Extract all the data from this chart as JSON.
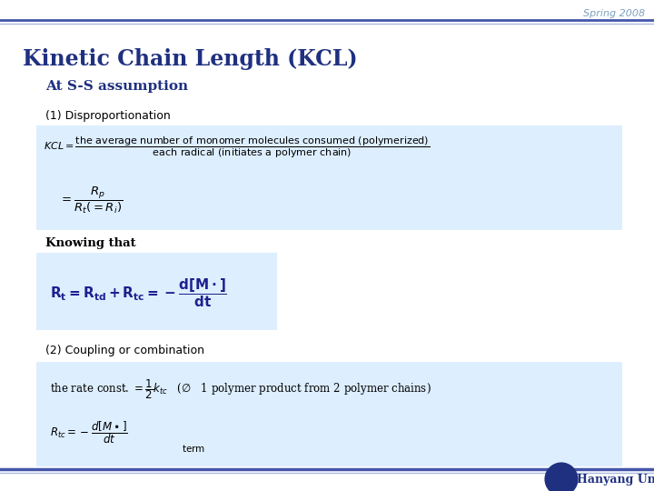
{
  "title": "Kinetic Chain Length (KCL)",
  "subtitle": "At S-S assumption",
  "spring_text": "Spring 2008",
  "section1": "(1) Disproportionation",
  "section2": "(2) Coupling or combination",
  "knowing_that": "Knowing that",
  "hanyang": "Hanyang Univ",
  "bg_color": "#ffffff",
  "title_color": "#1f3080",
  "subtitle_color": "#1f3080",
  "section_color": "#000000",
  "spring_color": "#7f9fbf",
  "box_color": "#ddeeff",
  "line_color_dark": "#4455aa",
  "line_color_light": "#aabbdd",
  "text_dark": "#000000",
  "eq_color": "#000000",
  "eq2_color": "#1f1f8f"
}
